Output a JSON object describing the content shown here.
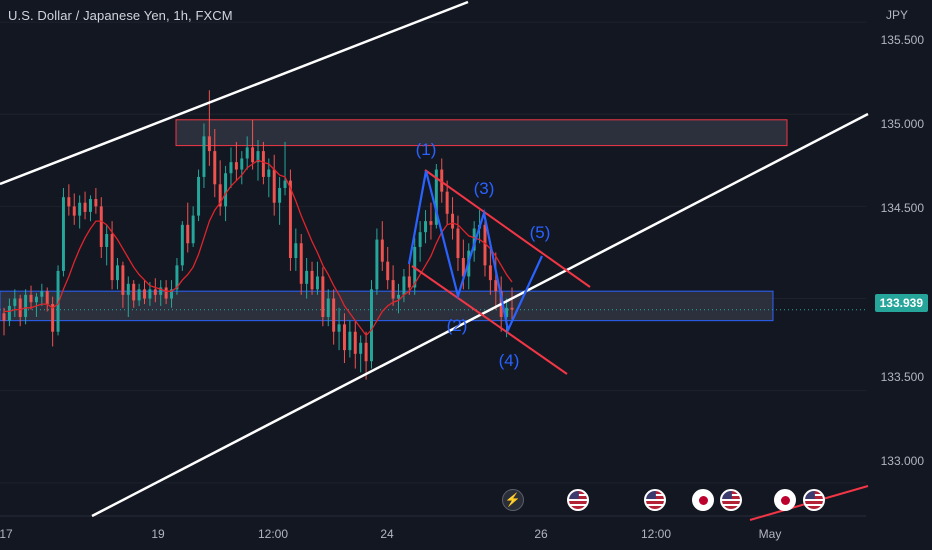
{
  "header": {
    "title": "U.S. Dollar / Japanese Yen, 1h, FXCM",
    "currency": "JPY"
  },
  "price_tag": "133.939",
  "y_ticks": [
    "135.500",
    "135.000",
    "134.500",
    "133.500",
    "133.000"
  ],
  "x_ticks": [
    "17",
    "19",
    "12:00",
    "24",
    "26",
    "12:00",
    "May"
  ],
  "wave_labels": [
    "(1)",
    "(2)",
    "(3)",
    "(4)",
    "(5)"
  ],
  "colors": {
    "background": "#131722",
    "up": "#26a69a",
    "down": "#ef5350",
    "ma": "#e0252b",
    "zone_fill": "#363a45",
    "zone_border_top": "#f23645",
    "zone_border_bottom": "#2962ff",
    "channel": "#ffffff",
    "wedge": "#f23645",
    "wave": "#2962ff"
  },
  "event_icons": [
    "flash-icon",
    "us-flag-icon",
    "us-flag-icon",
    "jp-flag-icon",
    "us-flag-icon",
    "jp-flag-icon",
    "us-flag-icon"
  ],
  "chart_data": {
    "type": "candlestick",
    "symbol": "USDJPY",
    "timeframe": "1h",
    "ylim": [
      132.82,
      135.62
    ],
    "last_price": 133.939,
    "resistance_zone": [
      134.83,
      134.97
    ],
    "support_zone": [
      133.88,
      134.04
    ],
    "wave_points": [
      {
        "label": "(1)",
        "price": 134.73
      },
      {
        "label": "(2)",
        "price": 133.99
      },
      {
        "label": "(3)",
        "price": 134.48
      },
      {
        "label": "(4)",
        "price": 133.79
      },
      {
        "label": "(5)",
        "price": 134.22
      }
    ],
    "series": [
      {
        "values": [
          [
            133.92,
            133.95,
            133.8,
            133.88
          ],
          [
            133.88,
            134.0,
            133.85,
            133.96
          ],
          [
            133.96,
            134.05,
            133.9,
            134.0
          ],
          [
            134.0,
            134.02,
            133.85,
            133.9
          ],
          [
            133.9,
            134.05,
            133.86,
            134.02
          ],
          [
            134.02,
            134.07,
            133.94,
            133.98
          ],
          [
            133.98,
            134.03,
            133.9,
            134.01
          ],
          [
            134.01,
            134.08,
            133.96,
            134.04
          ],
          [
            134.04,
            134.06,
            133.93,
            133.97
          ],
          [
            133.97,
            134.01,
            133.74,
            133.82
          ],
          [
            133.82,
            134.18,
            133.8,
            134.15
          ],
          [
            134.15,
            134.6,
            134.12,
            134.55
          ],
          [
            134.55,
            134.62,
            134.45,
            134.5
          ],
          [
            134.5,
            134.57,
            134.4,
            134.45
          ],
          [
            134.45,
            134.56,
            134.38,
            134.52
          ],
          [
            134.52,
            134.58,
            134.43,
            134.47
          ],
          [
            134.47,
            134.56,
            134.42,
            134.54
          ],
          [
            134.54,
            134.6,
            134.46,
            134.5
          ],
          [
            134.5,
            134.55,
            134.22,
            134.28
          ],
          [
            134.28,
            134.4,
            134.18,
            134.35
          ],
          [
            134.35,
            134.42,
            134.05,
            134.1
          ],
          [
            134.1,
            134.22,
            134.05,
            134.18
          ],
          [
            134.18,
            134.2,
            133.95,
            134.02
          ],
          [
            134.02,
            134.12,
            133.9,
            134.08
          ],
          [
            134.08,
            134.1,
            133.95,
            133.99
          ],
          [
            133.99,
            134.08,
            133.96,
            134.05
          ],
          [
            134.05,
            134.1,
            133.97,
            134.0
          ],
          [
            134.0,
            134.09,
            133.96,
            134.05
          ],
          [
            134.05,
            134.11,
            133.98,
            134.02
          ],
          [
            134.02,
            134.1,
            133.96,
            134.06
          ],
          [
            134.06,
            134.1,
            133.97,
            134.0
          ],
          [
            134.0,
            134.1,
            133.95,
            134.05
          ],
          [
            134.05,
            134.22,
            134.02,
            134.18
          ],
          [
            134.18,
            134.42,
            134.15,
            134.4
          ],
          [
            134.4,
            134.52,
            134.25,
            134.3
          ],
          [
            134.3,
            134.5,
            134.28,
            134.45
          ],
          [
            134.45,
            134.7,
            134.42,
            134.66
          ],
          [
            134.66,
            134.95,
            134.6,
            134.88
          ],
          [
            134.88,
            135.13,
            134.72,
            134.8
          ],
          [
            134.8,
            134.92,
            134.55,
            134.62
          ],
          [
            134.62,
            134.75,
            134.45,
            134.5
          ],
          [
            134.5,
            134.72,
            134.42,
            134.68
          ],
          [
            134.68,
            134.82,
            134.6,
            134.74
          ],
          [
            134.74,
            134.85,
            134.64,
            134.7
          ],
          [
            134.7,
            134.8,
            134.62,
            134.76
          ],
          [
            134.76,
            134.88,
            134.7,
            134.82
          ],
          [
            134.82,
            134.97,
            134.7,
            134.74
          ],
          [
            134.74,
            134.86,
            134.64,
            134.8
          ],
          [
            134.8,
            134.85,
            134.62,
            134.66
          ],
          [
            134.66,
            134.76,
            134.55,
            134.7
          ],
          [
            134.7,
            134.78,
            134.45,
            134.52
          ],
          [
            134.52,
            134.66,
            134.4,
            134.6
          ],
          [
            134.6,
            134.85,
            134.56,
            134.64
          ],
          [
            134.64,
            134.7,
            134.15,
            134.22
          ],
          [
            134.22,
            134.38,
            134.15,
            134.3
          ],
          [
            134.3,
            134.35,
            134.02,
            134.08
          ],
          [
            134.08,
            134.22,
            134.0,
            134.15
          ],
          [
            134.15,
            134.2,
            134.02,
            134.05
          ],
          [
            134.05,
            134.2,
            134.02,
            134.12
          ],
          [
            134.12,
            134.17,
            133.85,
            133.9
          ],
          [
            133.9,
            134.05,
            133.85,
            134.0
          ],
          [
            134.0,
            134.05,
            133.75,
            133.82
          ],
          [
            133.82,
            133.95,
            133.72,
            133.86
          ],
          [
            133.86,
            133.92,
            133.65,
            133.72
          ],
          [
            133.72,
            133.88,
            133.68,
            133.82
          ],
          [
            133.82,
            133.88,
            133.62,
            133.7
          ],
          [
            133.7,
            133.8,
            133.6,
            133.76
          ],
          [
            133.76,
            133.82,
            133.56,
            133.66
          ],
          [
            133.66,
            134.1,
            133.62,
            134.05
          ],
          [
            134.05,
            134.38,
            134.02,
            134.32
          ],
          [
            134.32,
            134.42,
            134.15,
            134.2
          ],
          [
            134.2,
            134.28,
            134.05,
            134.1
          ],
          [
            134.1,
            134.18,
            133.96,
            134.0
          ],
          [
            134.0,
            134.08,
            133.92,
            134.02
          ],
          [
            134.02,
            134.16,
            133.98,
            134.12
          ],
          [
            134.12,
            134.2,
            134.02,
            134.06
          ],
          [
            134.06,
            134.33,
            134.02,
            134.28
          ],
          [
            134.28,
            134.42,
            134.2,
            134.36
          ],
          [
            134.36,
            134.48,
            134.3,
            134.42
          ],
          [
            134.42,
            134.52,
            134.32,
            134.4
          ],
          [
            134.4,
            134.73,
            134.38,
            134.7
          ],
          [
            134.7,
            134.76,
            134.52,
            134.58
          ],
          [
            134.58,
            134.64,
            134.4,
            134.46
          ],
          [
            134.46,
            134.55,
            134.32,
            134.38
          ],
          [
            134.38,
            134.45,
            134.15,
            134.22
          ],
          [
            134.22,
            134.32,
            134.05,
            134.12
          ],
          [
            134.12,
            134.3,
            134.05,
            134.26
          ],
          [
            134.26,
            134.42,
            134.2,
            134.38
          ],
          [
            134.38,
            134.48,
            134.3,
            134.4
          ],
          [
            134.4,
            134.46,
            134.12,
            134.18
          ],
          [
            134.18,
            134.28,
            134.02,
            134.1
          ],
          [
            134.1,
            134.25,
            133.94,
            134.04
          ],
          [
            134.04,
            134.12,
            133.82,
            133.9
          ],
          [
            133.9,
            134.0,
            133.79,
            133.95
          ],
          [
            133.95,
            134.06,
            133.88,
            133.94
          ]
        ]
      }
    ],
    "moving_average": [
      133.93,
      133.93,
      133.94,
      133.94,
      133.95,
      133.95,
      133.96,
      133.97,
      133.97,
      133.95,
      133.97,
      134.05,
      134.12,
      134.2,
      134.27,
      134.33,
      134.38,
      134.42,
      134.42,
      134.4,
      134.36,
      134.32,
      134.27,
      134.22,
      134.17,
      134.13,
      134.1,
      134.07,
      134.06,
      134.05,
      134.04,
      134.04,
      134.06,
      134.1,
      134.13,
      134.17,
      134.24,
      134.33,
      134.42,
      134.48,
      134.52,
      134.57,
      134.61,
      134.64,
      134.67,
      134.71,
      134.73,
      134.75,
      134.74,
      134.73,
      134.7,
      134.67,
      134.66,
      134.6,
      134.53,
      134.45,
      134.38,
      134.31,
      134.25,
      134.18,
      134.13,
      134.07,
      134.02,
      133.96,
      133.92,
      133.88,
      133.84,
      133.8,
      133.83,
      133.88,
      133.93,
      133.96,
      133.98,
      133.99,
      134.02,
      134.04,
      134.08,
      134.13,
      134.18,
      134.23,
      134.3,
      134.36,
      134.4,
      134.41,
      134.4,
      134.37,
      134.34,
      134.33,
      134.32,
      134.3,
      134.27,
      134.23,
      134.18,
      134.13,
      134.09
    ]
  }
}
